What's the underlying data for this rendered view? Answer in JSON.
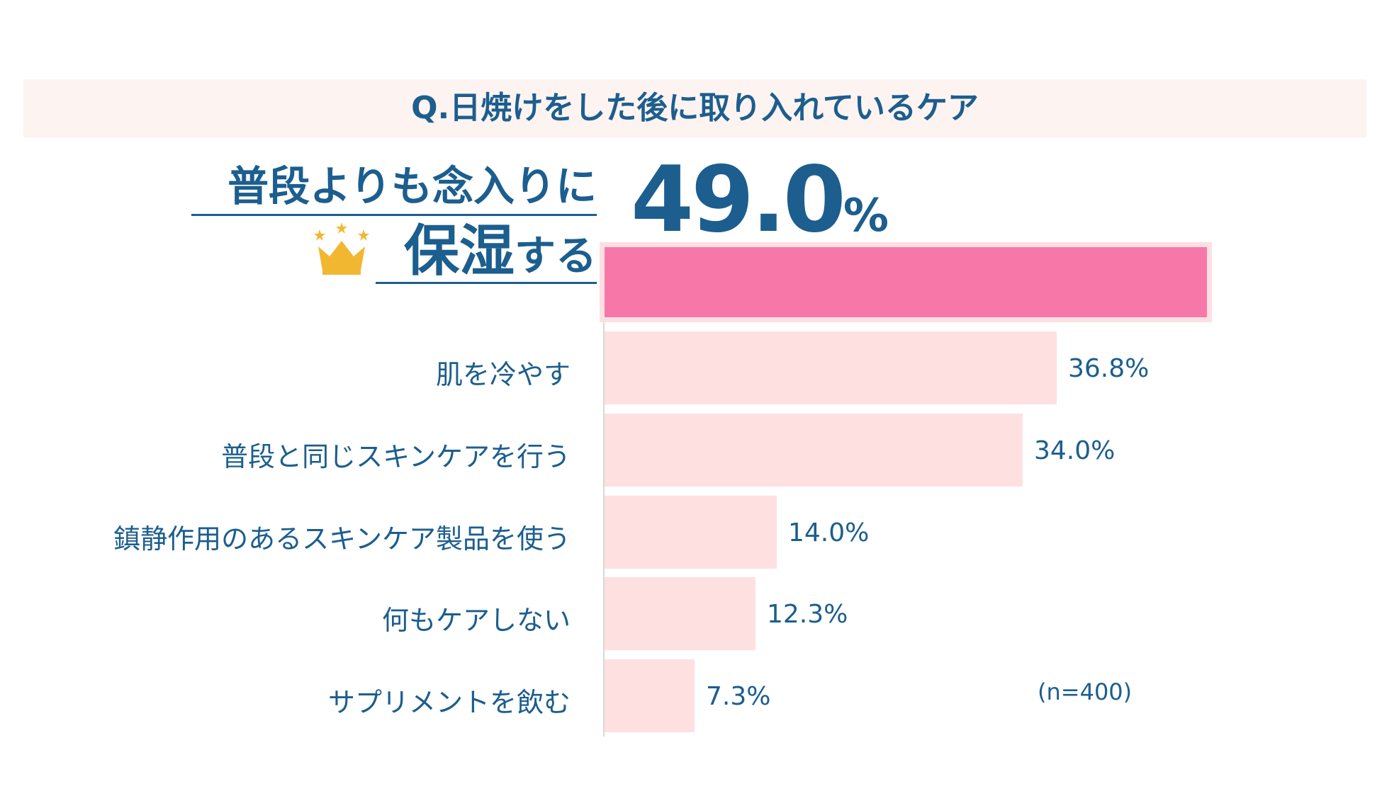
{
  "title": "Q.日焼けをした後に取り入れているケア",
  "highlight": {
    "line1": "普段よりも念入りに",
    "line2_big": "保湿",
    "line2_small": "する",
    "value_number": "49.0",
    "value_unit": "%"
  },
  "note": "(n=400)",
  "colors": {
    "accent_bar": "#f778a8",
    "accent_border": "#fde0e4",
    "bar": "#fee0e0",
    "text": "#1c5e8e",
    "title_band": "#fdf3f1",
    "crown": "#f2b731"
  },
  "chart_data": {
    "type": "bar",
    "orientation": "horizontal",
    "title": "Q.日焼けをした後に取り入れているケア",
    "categories": [
      "普段よりも念入りに保湿する",
      "肌を冷やす",
      "普段と同じスキンケアを行う",
      "鎮静作用のあるスキンケア製品を使う",
      "何もケアしない",
      "サプリメントを飲む"
    ],
    "values": [
      49.0,
      36.8,
      34.0,
      14.0,
      12.3,
      7.3
    ],
    "value_labels": [
      "49.0%",
      "36.8%",
      "34.0%",
      "14.0%",
      "12.3%",
      "7.3%"
    ],
    "unit": "%",
    "xlim": [
      0,
      49.0
    ],
    "sample_note": "(n=400)"
  }
}
